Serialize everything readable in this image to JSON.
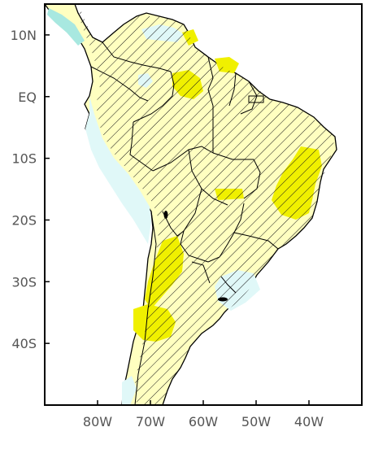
{
  "map": {
    "lat_labels": [
      "10N",
      "EQ",
      "10S",
      "20S",
      "30S",
      "40S"
    ],
    "lon_labels": [
      "80W",
      "70W",
      "60W",
      "50W",
      "40W"
    ],
    "lat_values": [
      10,
      0,
      -10,
      -20,
      -30,
      -40
    ],
    "lon_values": [
      -80,
      -70,
      -60,
      -50,
      -40
    ],
    "lon_range": [
      -90,
      -30
    ],
    "lat_range": [
      -50,
      15
    ],
    "colors": {
      "land_base": "#ffffc0",
      "wet_anomaly": "#e0f8f8",
      "wet_anomaly_strong": "#a8e8e0",
      "dry_anomaly": "#f0f000",
      "hatch": "#1a1a1a",
      "border": "#000000"
    }
  }
}
